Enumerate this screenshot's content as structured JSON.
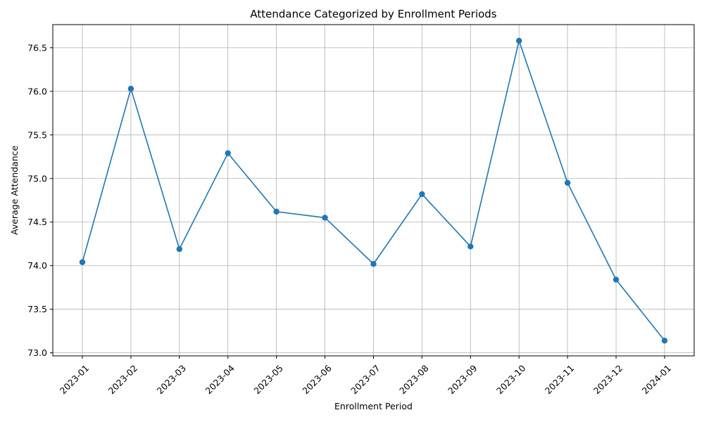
{
  "chart_data": {
    "type": "line",
    "title": "Attendance Categorized by Enrollment Periods",
    "xlabel": "Enrollment Period",
    "ylabel": "Average Attendance",
    "categories": [
      "2023-01",
      "2023-02",
      "2023-03",
      "2023-04",
      "2023-05",
      "2023-06",
      "2023-07",
      "2023-08",
      "2023-09",
      "2023-10",
      "2023-11",
      "2023-12",
      "2024-01"
    ],
    "series": [
      {
        "values": [
          74.04,
          76.03,
          74.19,
          75.29,
          74.62,
          74.55,
          74.02,
          74.82,
          74.22,
          76.58,
          74.95,
          73.84,
          73.14
        ]
      }
    ],
    "yticks": [
      "73.0",
      "73.5",
      "74.0",
      "74.5",
      "75.0",
      "75.5",
      "76.0",
      "76.5"
    ],
    "ylim": [
      72.965,
      76.765
    ],
    "grid": true,
    "line_color": "#1f77b4",
    "marker": "circle"
  }
}
